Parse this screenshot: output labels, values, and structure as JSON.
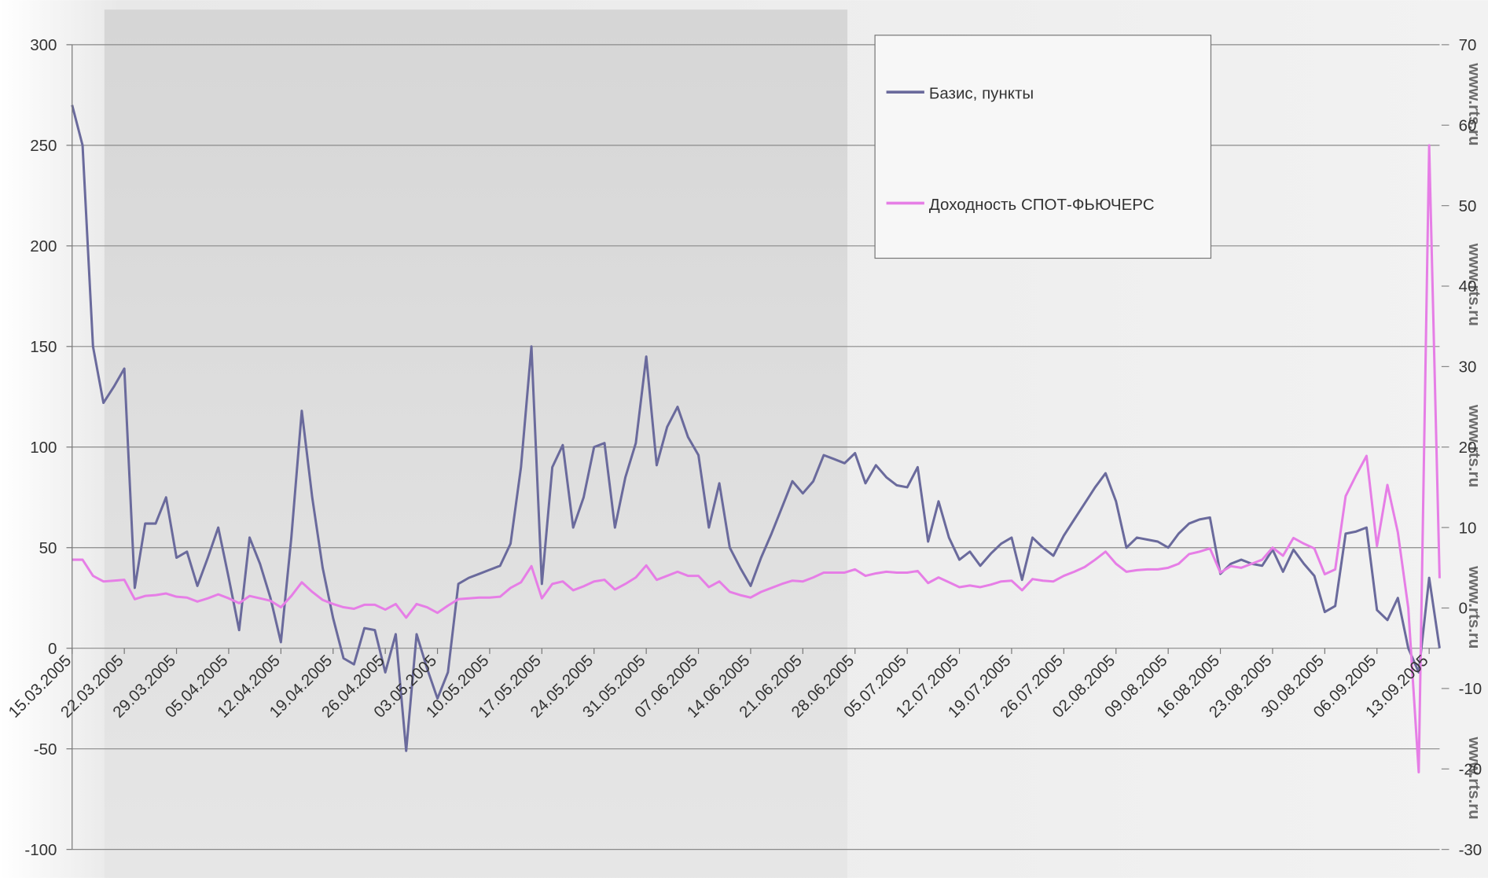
{
  "chart_data": {
    "type": "line",
    "watermark": "www.rts.ru",
    "categories": [
      "15.03.2005",
      null,
      null,
      null,
      null,
      "22.03.2005",
      null,
      null,
      null,
      null,
      "29.03.2005",
      null,
      null,
      null,
      null,
      "05.04.2005",
      null,
      null,
      null,
      null,
      "12.04.2005",
      null,
      null,
      null,
      null,
      "19.04.2005",
      null,
      null,
      null,
      null,
      "26.04.2005",
      null,
      null,
      null,
      null,
      "03.05.2005",
      null,
      null,
      null,
      null,
      "10.05.2005",
      null,
      null,
      null,
      null,
      "17.05.2005",
      null,
      null,
      null,
      null,
      "24.05.2005",
      null,
      null,
      null,
      null,
      "31.05.2005",
      null,
      null,
      null,
      null,
      "07.06.2005",
      null,
      null,
      null,
      null,
      "14.06.2005",
      null,
      null,
      null,
      null,
      "21.06.2005",
      null,
      null,
      null,
      null,
      "28.06.2005",
      null,
      null,
      null,
      null,
      "05.07.2005",
      null,
      null,
      null,
      null,
      "12.07.2005",
      null,
      null,
      null,
      null,
      "19.07.2005",
      null,
      null,
      null,
      null,
      "26.07.2005",
      null,
      null,
      null,
      null,
      "02.08.2005",
      null,
      null,
      null,
      null,
      "09.08.2005",
      null,
      null,
      null,
      null,
      "16.08.2005",
      null,
      null,
      null,
      null,
      "23.08.2005",
      null,
      null,
      null,
      null,
      "30.08.2005",
      null,
      null,
      null,
      null,
      "06.09.2005",
      null,
      null,
      null,
      null,
      "13.09.2005",
      null
    ],
    "series": [
      {
        "name": "Базис, пункты",
        "color": "#6a6a9c",
        "axis": "y",
        "values": [
          270,
          250,
          150,
          122,
          130,
          139,
          30,
          62,
          62,
          75,
          45,
          48,
          31,
          45,
          60,
          35,
          9,
          55,
          42,
          25,
          3,
          55,
          118,
          75,
          40,
          15,
          -5,
          -8,
          10,
          9,
          -12,
          7,
          -51,
          7,
          -10,
          -25,
          -12,
          32,
          35,
          37,
          39,
          41,
          52,
          90,
          150,
          32,
          90,
          101,
          60,
          75,
          100,
          102,
          60,
          85,
          102,
          145,
          91,
          110,
          120,
          105,
          96,
          60,
          82,
          50,
          40,
          31,
          45,
          57,
          70,
          83,
          77,
          83,
          96,
          94,
          92,
          97,
          82,
          91,
          85,
          81,
          80,
          90,
          53,
          73,
          55,
          44,
          48,
          41,
          47,
          52,
          55,
          34,
          55,
          50,
          46,
          56,
          64,
          72,
          80,
          87,
          73,
          50,
          55,
          54,
          53,
          50,
          57,
          62,
          64,
          65,
          37,
          42,
          44,
          42,
          41,
          49,
          38,
          49,
          42,
          36,
          18,
          21,
          57,
          58,
          60,
          19,
          14,
          25,
          0,
          -12,
          35,
          0
        ]
      },
      {
        "name": "Доходность СПОТ-ФЬЮЧЕРС",
        "color": "#e67ee6",
        "axis": "y2",
        "values": [
          6.0,
          6.0,
          4.0,
          3.3,
          3.4,
          3.5,
          1.1,
          1.5,
          1.6,
          1.8,
          1.4,
          1.3,
          0.8,
          1.2,
          1.7,
          1.2,
          0.6,
          1.5,
          1.2,
          0.9,
          0.1,
          1.5,
          3.2,
          2.0,
          1.0,
          0.5,
          0.1,
          -0.1,
          0.4,
          0.4,
          -0.2,
          0.5,
          -1.2,
          0.5,
          0.1,
          -0.6,
          0.3,
          1.1,
          1.2,
          1.3,
          1.3,
          1.4,
          2.5,
          3.2,
          5.2,
          1.2,
          3.0,
          3.3,
          2.2,
          2.7,
          3.3,
          3.5,
          2.3,
          3.0,
          3.8,
          5.3,
          3.5,
          4.0,
          4.5,
          4.0,
          4.0,
          2.6,
          3.3,
          2.0,
          1.6,
          1.3,
          2.0,
          2.5,
          3.0,
          3.4,
          3.3,
          3.8,
          4.4,
          4.4,
          4.4,
          4.8,
          4.0,
          4.3,
          4.5,
          4.4,
          4.4,
          4.6,
          3.1,
          3.8,
          3.2,
          2.6,
          2.8,
          2.6,
          2.9,
          3.3,
          3.4,
          2.2,
          3.6,
          3.4,
          3.3,
          4.0,
          4.5,
          5.1,
          6.0,
          7.0,
          5.5,
          4.5,
          4.7,
          4.8,
          4.8,
          5.0,
          5.5,
          6.7,
          7.0,
          7.4,
          4.4,
          5.2,
          5.0,
          5.5,
          6.0,
          7.5,
          6.5,
          8.7,
          8.0,
          7.4,
          4.2,
          4.8,
          13.9,
          16.5,
          18.9,
          7.7,
          15.3,
          9.4,
          0,
          -20.4,
          57.5,
          3.7
        ]
      }
    ],
    "ylim": [
      -100,
      300
    ],
    "yticks": [
      -100,
      -50,
      0,
      50,
      100,
      150,
      200,
      250,
      300
    ],
    "y2lim": [
      -30,
      70
    ],
    "y2ticks": [
      -30,
      -20,
      -10,
      0,
      10,
      20,
      30,
      40,
      50,
      60,
      70
    ],
    "grid": true,
    "legend": "top-right"
  }
}
